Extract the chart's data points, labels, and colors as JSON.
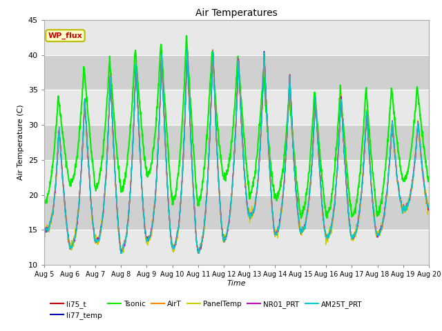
{
  "title": "Air Temperatures",
  "xlabel": "Time",
  "ylabel": "Air Temperature (C)",
  "ylim": [
    10,
    45
  ],
  "label_box": "WP_flux",
  "label_box_color": "#ffffcc",
  "label_box_text_color": "#cc0000",
  "label_box_edge_color": "#bbbb00",
  "plot_bg_color": "#d8d8d8",
  "fig_bg_color": "#ffffff",
  "series": [
    {
      "name": "li75_t",
      "color": "#cc0000",
      "lw": 1.0
    },
    {
      "name": "li77_temp",
      "color": "#0000cc",
      "lw": 1.0
    },
    {
      "name": "Tsonic",
      "color": "#00ee00",
      "lw": 1.5
    },
    {
      "name": "AirT",
      "color": "#ff8800",
      "lw": 1.0
    },
    {
      "name": "PanelTemp",
      "color": "#cccc00",
      "lw": 1.0
    },
    {
      "name": "NR01_PRT",
      "color": "#cc00cc",
      "lw": 1.0
    },
    {
      "name": "AM25T_PRT",
      "color": "#00cccc",
      "lw": 1.0
    }
  ],
  "xtick_labels": [
    "Aug 5",
    "Aug 6",
    "Aug 7",
    "Aug 8",
    "Aug 9",
    "Aug 10",
    "Aug 11",
    "Aug 12",
    "Aug 13",
    "Aug 14",
    "Aug 15",
    "Aug 16",
    "Aug 17",
    "Aug 18",
    "Aug 19",
    "Aug 20"
  ],
  "ytick_labels": [
    10,
    15,
    20,
    25,
    30,
    35,
    40,
    45
  ],
  "grid_color": "#ffffff",
  "band_colors": [
    "#e8e8e8",
    "#d0d0d0"
  ],
  "n_days": 15
}
